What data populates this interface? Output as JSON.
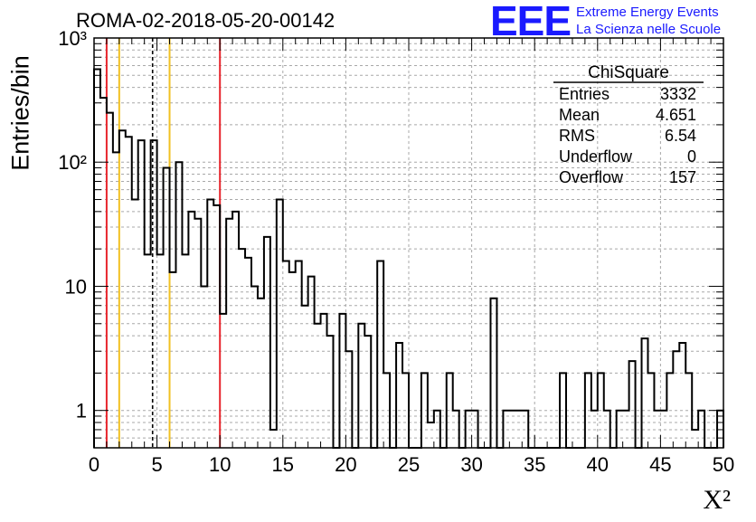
{
  "header": {
    "run_title": "ROMA-02-2018-05-20-00142"
  },
  "logo": {
    "mark": "EEE",
    "line1": "Extreme Energy Events",
    "line2": "La Scienza nelle Scuole",
    "color": "#1a1aff"
  },
  "stats_box": {
    "title": "ChiSquare",
    "rows": [
      {
        "label": "Entries",
        "value": "3332"
      },
      {
        "label": "Mean",
        "value": "4.651"
      },
      {
        "label": "RMS",
        "value": "6.54"
      },
      {
        "label": "Underflow",
        "value": "0"
      },
      {
        "label": "Overflow",
        "value": "157"
      }
    ]
  },
  "chart_data": {
    "type": "histogram",
    "xlabel": "X²",
    "ylabel": "Entries/bin",
    "xlim": [
      0,
      50
    ],
    "ylim": [
      0.5,
      1000
    ],
    "log_y": true,
    "grid": true,
    "bin_width": 0.5,
    "x_ticks": [
      "0",
      "5",
      "10",
      "15",
      "20",
      "25",
      "30",
      "35",
      "40",
      "45",
      "50"
    ],
    "y_ticks": [
      "1",
      "10",
      "10²",
      "10³"
    ],
    "values": [
      560,
      330,
      250,
      120,
      180,
      160,
      50,
      150,
      18,
      150,
      18,
      90,
      13,
      100,
      18,
      40,
      35,
      10,
      50,
      45,
      6,
      35,
      40,
      20,
      17,
      10,
      8,
      25,
      0.7,
      50,
      16,
      13,
      16,
      7,
      12,
      5,
      6,
      4,
      0,
      6,
      3,
      0.4,
      5,
      4,
      0.5,
      16,
      2,
      0.5,
      3.5,
      2,
      0.5,
      0,
      2,
      0.8,
      1,
      0.5,
      2,
      1,
      0.5,
      1,
      1,
      0.5,
      0,
      8,
      0,
      1,
      1,
      1,
      1,
      0,
      0,
      0,
      0,
      0,
      2,
      0.5,
      0,
      0,
      2,
      1,
      2,
      1,
      0.5,
      1,
      1,
      2.5,
      0.5,
      3.8,
      2,
      1,
      1,
      2,
      3,
      3.5,
      2,
      0.7,
      1,
      0,
      0.5,
      1
    ],
    "vertical_lines": [
      {
        "x": 1.0,
        "color": "#e8262d",
        "style": "solid"
      },
      {
        "x": 2.0,
        "color": "#f2c122",
        "style": "solid"
      },
      {
        "x": 4.65,
        "color": "#000000",
        "style": "dashed"
      },
      {
        "x": 6.0,
        "color": "#f2c122",
        "style": "solid"
      },
      {
        "x": 10.0,
        "color": "#e8262d",
        "style": "solid"
      }
    ]
  }
}
